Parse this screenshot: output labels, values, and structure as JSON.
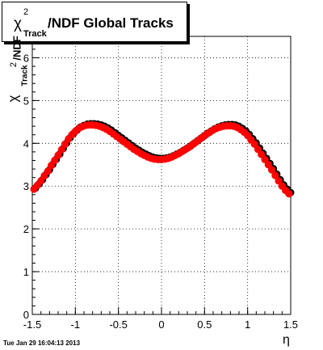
{
  "title": {
    "chi": "χ",
    "sup": "2",
    "sub": "Track",
    "rest": "/NDF  Global Tracks"
  },
  "ylabel": {
    "chi": "χ",
    "sup": "2",
    "sub": "Track",
    "rest": "/NDF"
  },
  "xlabel": "η",
  "footer": "Tue Jan 29 16:04:13 2013",
  "colors": {
    "marker": "#ff0000",
    "shadow": "#000000",
    "grid": "#000000"
  },
  "chart_data": {
    "type": "scatter",
    "xlim": [
      -1.5,
      1.5
    ],
    "ylim": [
      0,
      6.5
    ],
    "grid": true,
    "x_ticks": [
      "-1.5",
      "-1",
      "-0.5",
      "0",
      "0.5",
      "1",
      "1.5"
    ],
    "y_ticks": [
      "0",
      "1",
      "2",
      "3",
      "4",
      "5",
      "6"
    ],
    "series": [
      {
        "x": [
          -1.48,
          -1.44,
          -1.4,
          -1.36,
          -1.32,
          -1.28,
          -1.24,
          -1.2,
          -1.16,
          -1.12,
          -1.08,
          -1.04,
          -1.0,
          -0.96,
          -0.92,
          -0.88,
          -0.84,
          -0.8,
          -0.76,
          -0.72,
          -0.68,
          -0.64,
          -0.6,
          -0.56,
          -0.52,
          -0.48,
          -0.44,
          -0.4,
          -0.36,
          -0.32,
          -0.28,
          -0.24,
          -0.2,
          -0.16,
          -0.12,
          -0.08,
          -0.04,
          0.0,
          0.04,
          0.08,
          0.12,
          0.16,
          0.2,
          0.24,
          0.28,
          0.32,
          0.36,
          0.4,
          0.44,
          0.48,
          0.52,
          0.56,
          0.6,
          0.64,
          0.68,
          0.72,
          0.76,
          0.8,
          0.84,
          0.88,
          0.92,
          0.96,
          1.0,
          1.04,
          1.08,
          1.12,
          1.16,
          1.2,
          1.24,
          1.28,
          1.32,
          1.36,
          1.4,
          1.44,
          1.48
        ],
        "y": [
          2.93,
          3.02,
          3.12,
          3.24,
          3.35,
          3.48,
          3.6,
          3.72,
          3.85,
          3.98,
          4.1,
          4.2,
          4.28,
          4.35,
          4.39,
          4.42,
          4.43,
          4.43,
          4.42,
          4.4,
          4.37,
          4.33,
          4.28,
          4.22,
          4.16,
          4.1,
          4.04,
          3.98,
          3.92,
          3.86,
          3.81,
          3.76,
          3.72,
          3.68,
          3.65,
          3.63,
          3.62,
          3.62,
          3.63,
          3.65,
          3.68,
          3.72,
          3.76,
          3.81,
          3.86,
          3.91,
          3.97,
          4.03,
          4.09,
          4.15,
          4.21,
          4.26,
          4.31,
          4.35,
          4.38,
          4.4,
          4.41,
          4.41,
          4.4,
          4.37,
          4.32,
          4.26,
          4.18,
          4.08,
          3.98,
          3.86,
          3.74,
          3.62,
          3.5,
          3.38,
          3.25,
          3.12,
          3.0,
          2.9,
          2.82
        ]
      }
    ]
  }
}
